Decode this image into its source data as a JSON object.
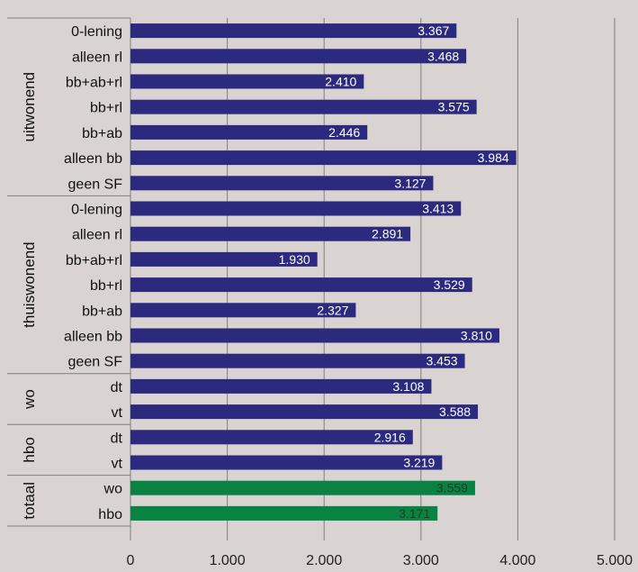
{
  "colors": {
    "background": "#d9d4d1",
    "bar_default": "#2b2a7e",
    "bar_highlight": "#0a8241",
    "grid": "#7f7f7f",
    "label_on_default": "#ffffff",
    "label_on_highlight": "#1f3b2a"
  },
  "chart_data": {
    "type": "bar",
    "orientation": "horizontal",
    "grid": true,
    "xlim": [
      0,
      5000
    ],
    "xticks": [
      {
        "value": 0,
        "label": "0"
      },
      {
        "value": 1000,
        "label": "1.000"
      },
      {
        "value": 2000,
        "label": "2.000"
      },
      {
        "value": 3000,
        "label": "3.000"
      },
      {
        "value": 4000,
        "label": "4.000"
      },
      {
        "value": 5000,
        "label": "5.000"
      }
    ],
    "groups": [
      {
        "name": "uitwonend",
        "categories": [
          {
            "label": "0-lening",
            "value": 3367,
            "display": "3.367",
            "highlight": false
          },
          {
            "label": "alleen rl",
            "value": 3468,
            "display": "3.468",
            "highlight": false
          },
          {
            "label": "bb+ab+rl",
            "value": 2410,
            "display": "2.410",
            "highlight": false
          },
          {
            "label": "bb+rl",
            "value": 3575,
            "display": "3.575",
            "highlight": false
          },
          {
            "label": "bb+ab",
            "value": 2446,
            "display": "2.446",
            "highlight": false
          },
          {
            "label": "alleen bb",
            "value": 3984,
            "display": "3.984",
            "highlight": false
          },
          {
            "label": "geen SF",
            "value": 3127,
            "display": "3.127",
            "highlight": false
          }
        ]
      },
      {
        "name": "thuiswonend",
        "categories": [
          {
            "label": "0-lening",
            "value": 3413,
            "display": "3.413",
            "highlight": false
          },
          {
            "label": "alleen rl",
            "value": 2891,
            "display": "2.891",
            "highlight": false
          },
          {
            "label": "bb+ab+rl",
            "value": 1930,
            "display": "1.930",
            "highlight": false
          },
          {
            "label": "bb+rl",
            "value": 3529,
            "display": "3.529",
            "highlight": false
          },
          {
            "label": "bb+ab",
            "value": 2327,
            "display": "2.327",
            "highlight": false
          },
          {
            "label": "alleen bb",
            "value": 3810,
            "display": "3.810",
            "highlight": false
          },
          {
            "label": "geen SF",
            "value": 3453,
            "display": "3.453",
            "highlight": false
          }
        ]
      },
      {
        "name": "wo",
        "categories": [
          {
            "label": "dt",
            "value": 3108,
            "display": "3.108",
            "highlight": false
          },
          {
            "label": "vt",
            "value": 3588,
            "display": "3.588",
            "highlight": false
          }
        ]
      },
      {
        "name": "hbo",
        "categories": [
          {
            "label": "dt",
            "value": 2916,
            "display": "2.916",
            "highlight": false
          },
          {
            "label": "vt",
            "value": 3219,
            "display": "3.219",
            "highlight": false
          }
        ]
      },
      {
        "name": "totaal",
        "categories": [
          {
            "label": "wo",
            "value": 3559,
            "display": "3.559",
            "highlight": true
          },
          {
            "label": "hbo",
            "value": 3171,
            "display": "3.171",
            "highlight": true
          }
        ]
      }
    ]
  }
}
